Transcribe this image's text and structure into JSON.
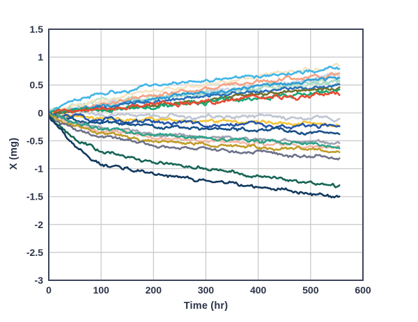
{
  "chart_data": {
    "type": "line",
    "title": "",
    "xlabel": "Time (hr)",
    "ylabel": "X (mg)",
    "xlim": [
      0,
      600
    ],
    "ylim": [
      -3,
      1.5
    ],
    "xticks": [
      0,
      100,
      200,
      300,
      400,
      500,
      600
    ],
    "xtick_labels": [
      "0",
      "100",
      "200",
      "300",
      "400",
      "500",
      "600"
    ],
    "yticks": [
      1.5,
      1,
      0.5,
      0,
      -0.5,
      -1,
      -1.5,
      -2,
      -2.5,
      -3
    ],
    "ytick_labels": [
      "1.5",
      "1",
      "0.5",
      "0",
      "-0.5",
      "-1",
      "-1.5",
      "-2",
      "-2.5",
      "-3"
    ],
    "grid": true,
    "legend": "none",
    "x_data_end": 555,
    "keypoint_x": [
      0,
      50,
      100,
      200,
      300,
      400,
      500,
      555
    ],
    "series": [
      {
        "name": "pale-green",
        "color": "#c3e1c6",
        "noise": 0.07,
        "y": [
          0.05,
          0.17,
          0.2,
          0.28,
          0.36,
          0.44,
          0.5,
          0.55
        ]
      },
      {
        "name": "wheat",
        "color": "#f4e4c4",
        "noise": 0.05,
        "y": [
          0.02,
          0.12,
          0.22,
          0.38,
          0.52,
          0.65,
          0.77,
          0.85
        ]
      },
      {
        "name": "periwinkle",
        "color": "#c9d2e2",
        "noise": 0.05,
        "y": [
          0.0,
          0.08,
          0.15,
          0.28,
          0.4,
          0.5,
          0.6,
          0.66
        ]
      },
      {
        "name": "pale-aqua",
        "color": "#a6d9c8",
        "noise": 0.06,
        "y": [
          0.02,
          0.06,
          0.12,
          0.24,
          0.34,
          0.44,
          0.53,
          0.58
        ]
      },
      {
        "name": "salmon",
        "color": "#f5a283",
        "noise": 0.05,
        "y": [
          0.0,
          0.08,
          0.16,
          0.3,
          0.44,
          0.55,
          0.65,
          0.71
        ]
      },
      {
        "name": "cerulean",
        "color": "#2f9fd6",
        "noise": 0.04,
        "y": [
          0.0,
          0.06,
          0.12,
          0.25,
          0.37,
          0.47,
          0.57,
          0.63
        ]
      },
      {
        "name": "sky-blue",
        "color": "#41b6e8",
        "noise": 0.04,
        "y": [
          0.03,
          0.22,
          0.33,
          0.48,
          0.58,
          0.66,
          0.74,
          0.79
        ]
      },
      {
        "name": "silver",
        "color": "#bfc6d2",
        "noise": 0.05,
        "y": [
          0.0,
          -0.02,
          -0.03,
          -0.05,
          -0.06,
          -0.08,
          -0.09,
          -0.1
        ]
      },
      {
        "name": "medium-blue",
        "color": "#2a6fb8",
        "noise": 0.04,
        "y": [
          0.0,
          0.05,
          0.1,
          0.2,
          0.3,
          0.38,
          0.45,
          0.5
        ]
      },
      {
        "name": "olive",
        "color": "#6f6e2c",
        "noise": 0.04,
        "y": [
          0.0,
          0.02,
          0.05,
          0.14,
          0.24,
          0.33,
          0.41,
          0.45
        ]
      },
      {
        "name": "emerald",
        "color": "#18a672",
        "noise": 0.05,
        "y": [
          0.0,
          0.02,
          0.05,
          0.12,
          0.2,
          0.28,
          0.36,
          0.41
        ]
      },
      {
        "name": "red",
        "color": "#e94b32",
        "noise": 0.05,
        "y": [
          0.0,
          0.05,
          0.09,
          0.15,
          0.2,
          0.26,
          0.31,
          0.35
        ]
      },
      {
        "name": "yellow",
        "color": "#f4c437",
        "noise": 0.04,
        "y": [
          -0.02,
          -0.06,
          -0.09,
          -0.12,
          -0.14,
          -0.16,
          -0.18,
          -0.2
        ]
      },
      {
        "name": "royal-blue",
        "color": "#2456a8",
        "noise": 0.05,
        "y": [
          -0.02,
          -0.08,
          -0.12,
          -0.17,
          -0.2,
          -0.22,
          -0.24,
          -0.26
        ]
      },
      {
        "name": "navy",
        "color": "#175089",
        "noise": 0.04,
        "y": [
          -0.03,
          -0.12,
          -0.18,
          -0.25,
          -0.29,
          -0.32,
          -0.34,
          -0.36
        ]
      },
      {
        "name": "gray",
        "color": "#9ba2b0",
        "noise": 0.04,
        "y": [
          -0.03,
          -0.18,
          -0.27,
          -0.37,
          -0.43,
          -0.48,
          -0.52,
          -0.55
        ]
      },
      {
        "name": "light-pink",
        "color": "#f5b8a6",
        "noise": 0.04,
        "y": [
          -0.04,
          -0.21,
          -0.31,
          -0.43,
          -0.5,
          -0.55,
          -0.59,
          -0.62
        ]
      },
      {
        "name": "teal",
        "color": "#2fa287",
        "noise": 0.04,
        "y": [
          -0.04,
          -0.2,
          -0.29,
          -0.4,
          -0.47,
          -0.52,
          -0.56,
          -0.6
        ]
      },
      {
        "name": "mustard",
        "color": "#bf9c28",
        "noise": 0.04,
        "y": [
          -0.05,
          -0.25,
          -0.37,
          -0.5,
          -0.57,
          -0.62,
          -0.66,
          -0.7
        ]
      },
      {
        "name": "slate",
        "color": "#6c7288",
        "noise": 0.04,
        "y": [
          -0.05,
          -0.3,
          -0.44,
          -0.57,
          -0.65,
          -0.71,
          -0.76,
          -0.8
        ]
      },
      {
        "name": "dark-teal",
        "color": "#156455",
        "noise": 0.04,
        "y": [
          -0.05,
          -0.45,
          -0.68,
          -0.88,
          -1.0,
          -1.12,
          -1.25,
          -1.32
        ]
      },
      {
        "name": "dark-navy",
        "color": "#12395f",
        "noise": 0.04,
        "y": [
          -0.05,
          -0.62,
          -0.93,
          -1.1,
          -1.2,
          -1.32,
          -1.44,
          -1.5
        ]
      }
    ],
    "style": {
      "background": "#ffffff",
      "border_color": "#3d4459",
      "grid_color": "#c6c6c6",
      "text_color": "#2b3348",
      "line_width": 2.6,
      "tick_font_px": 14
    }
  }
}
